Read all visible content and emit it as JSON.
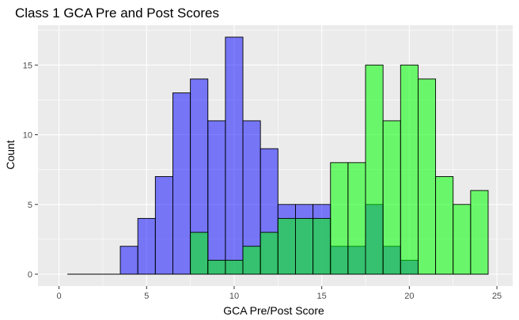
{
  "chart_data": {
    "type": "histogram",
    "title": "Class 1 GCA Pre and Post Scores",
    "xlabel": "GCA Pre/Post Score",
    "ylabel": "Count",
    "xlim": [
      -1.2,
      25.9
    ],
    "ylim": [
      -0.85,
      17.85
    ],
    "x_ticks": [
      0,
      5,
      10,
      15,
      20,
      25
    ],
    "y_ticks": [
      0,
      5,
      10,
      15
    ],
    "x_tick_labels": [
      "0",
      "5",
      "10",
      "15",
      "20",
      "25"
    ],
    "y_tick_labels": [
      "0",
      "5",
      "10",
      "15"
    ],
    "bin_width": 1,
    "bin_centers": [
      1,
      2,
      3,
      4,
      5,
      6,
      7,
      8,
      9,
      10,
      11,
      12,
      13,
      14,
      15,
      16,
      17,
      18,
      19,
      20,
      21,
      22,
      23,
      24
    ],
    "grid": true,
    "series": [
      {
        "color": "#0000ff",
        "opacity": 0.5,
        "values": [
          0,
          0,
          0,
          2,
          4,
          7,
          13,
          14,
          11,
          17,
          11,
          9,
          5,
          5,
          5,
          2,
          2,
          5,
          2,
          1,
          0,
          0,
          0,
          0
        ]
      },
      {
        "color": "#00ff00",
        "opacity": 0.55,
        "values": [
          0,
          0,
          0,
          0,
          0,
          0,
          0,
          3,
          1,
          1,
          2,
          3,
          4,
          4,
          4,
          8,
          8,
          15,
          11,
          15,
          14,
          7,
          5,
          6
        ]
      }
    ],
    "colors": {
      "panel_background": "#ebebeb",
      "grid_major": "#ffffff",
      "bar_outline": "#000000"
    }
  }
}
